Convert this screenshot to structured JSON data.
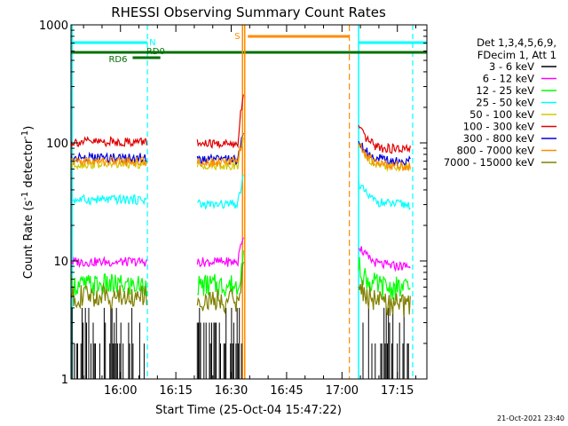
{
  "chart_data": {
    "type": "line",
    "title": "RHESSI Observing Summary Count Rates",
    "xlabel": "Start Time (25-Oct-04 15:47:22)",
    "ylabel": "Count Rate (s",
    "ylabel_sup1": "-1",
    "ylabel_mid": " detector",
    "ylabel_sup2": "-1",
    "ylabel_end": ")",
    "y_scale": "log",
    "ylim": [
      1,
      1000
    ],
    "xlim_minutes": [
      -13.4,
      83
    ],
    "x_ticks": [
      {
        "m": 0,
        "label": "16:00"
      },
      {
        "m": 15,
        "label": "16:15"
      },
      {
        "m": 30,
        "label": "16:30"
      },
      {
        "m": 45,
        "label": "16:45"
      },
      {
        "m": 60,
        "label": "17:00"
      },
      {
        "m": 75,
        "label": "17:15"
      }
    ],
    "y_ticks": [
      {
        "v": 1,
        "label": "1"
      },
      {
        "v": 10,
        "label": "10"
      },
      {
        "v": 100,
        "label": "100"
      },
      {
        "v": 1000,
        "label": "1000"
      }
    ],
    "legend_header": [
      "Det 1,3,4,5,6,9,",
      "FDecim 1, Att 1"
    ],
    "legend_position": "right",
    "series": [
      {
        "name": "3 - 6 keV",
        "color": "#000000"
      },
      {
        "name": "6 - 12 keV",
        "color": "#ff00ff"
      },
      {
        "name": "12 - 25 keV",
        "color": "#00ff00"
      },
      {
        "name": "25 - 50 keV",
        "color": "#00ffff"
      },
      {
        "name": "50 - 100 keV",
        "color": "#d4c800"
      },
      {
        "name": "100 - 300 keV",
        "color": "#e00000"
      },
      {
        "name": "300 - 800 keV",
        "color": "#0000e0"
      },
      {
        "name": "800 - 7000 keV",
        "color": "#ff8c00"
      },
      {
        "name": "7000 - 15000 keV",
        "color": "#808000"
      }
    ],
    "segments": [
      [
        -13.4,
        7.3
      ],
      [
        20.8,
        33.3
      ],
      [
        64.5,
        78.5
      ]
    ],
    "levels": {
      "3 - 6 keV": {
        "seg1": 1.0,
        "seg2": 1.0,
        "seg3": 1.0
      },
      "6 - 12 keV": {
        "seg1": 9.8,
        "seg2": 9.8,
        "seg3": 9.0
      },
      "12 - 25 keV": {
        "seg1": 6.2,
        "seg2": 6.2,
        "seg3": 5.8
      },
      "25 - 50 keV": {
        "seg1": 33,
        "seg2": 30,
        "seg3": 30
      },
      "50 - 100 keV": {
        "seg1": 66,
        "seg2": 65,
        "seg3": 63
      },
      "100 - 300 keV": {
        "seg1": 102,
        "seg2": 98,
        "seg3": 88
      },
      "300 - 800 keV": {
        "seg1": 75,
        "seg2": 72,
        "seg3": 70
      },
      "800 - 7000 keV": {
        "seg1": 70,
        "seg2": 69,
        "seg3": 64
      },
      "7000 - 15000 keV": {
        "seg1": 5.0,
        "seg2": 4.6,
        "seg3": 4.2
      }
    },
    "flags": {
      "N": {
        "label": "N",
        "color": "#00ffff",
        "intervals": [
          [
            -13.4,
            7.3
          ],
          [
            64.5,
            83
          ]
        ]
      },
      "S": {
        "label": "S",
        "color": "#ff8c00",
        "start": 33.3,
        "end": 62.0
      },
      "RD6": {
        "label": "RD6",
        "color": "#007000",
        "start": 3.3,
        "end": 10.8
      },
      "RD0": {
        "label": "RD0",
        "color": "#007000",
        "start": -13.4,
        "end": 83
      }
    },
    "grid": false
  },
  "footer": {
    "timestamp": "21-Oct-2021 23:40"
  }
}
